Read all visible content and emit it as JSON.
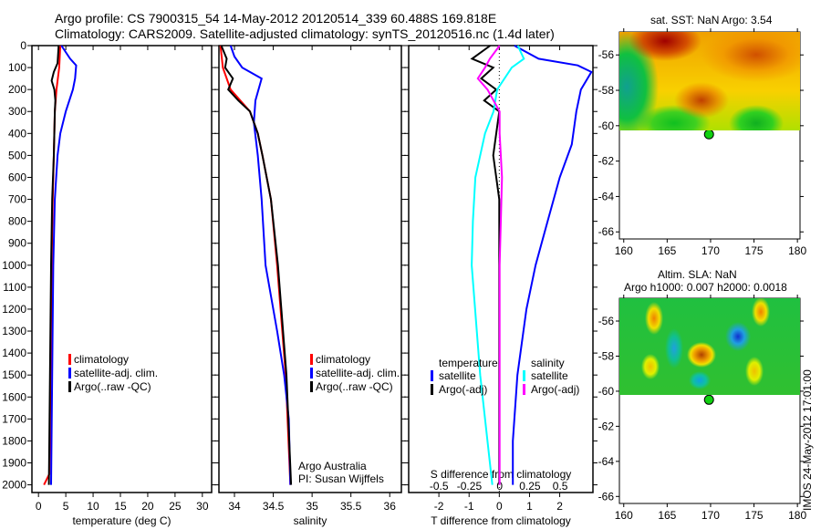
{
  "title_line1": "Argo profile: CS 7900315_54 14-May-2012 20120514_339 60.488S 169.818E",
  "title_line2": "Climatology: CARS2009. Satellite-adjusted climatology: synTS_20120516.nc (1.4d later)",
  "colors": {
    "climatology": "#ff0000",
    "satellite": "#0000ff",
    "argo": "#000000",
    "sat_salinity": "#00ffff",
    "argo_salinity": "#ff00ff"
  },
  "chart_data": [
    {
      "type": "line",
      "name": "temperature",
      "xlabel": "temperature (deg C)",
      "ylabel": "",
      "xlim": [
        -1.2,
        31.7
      ],
      "ylim": [
        2035,
        0
      ],
      "xticks": [
        0,
        5,
        10,
        15,
        20,
        25,
        30
      ],
      "yticks": [
        0,
        100,
        200,
        300,
        400,
        500,
        600,
        700,
        800,
        900,
        1000,
        1100,
        1200,
        1300,
        1400,
        1500,
        1600,
        1700,
        1800,
        1900,
        2000
      ],
      "legend": [
        "climatology",
        "satellite-adj. clim.",
        "Argo(..raw -QC)"
      ],
      "series": [
        {
          "name": "climatology",
          "color": "#ff0000",
          "depth": [
            0,
            100,
            200,
            300,
            500,
            700,
            1000,
            1500,
            1950,
            2000
          ],
          "values": [
            4.0,
            3.8,
            3.3,
            3.0,
            2.8,
            2.6,
            2.4,
            2.2,
            2.0,
            1.0
          ]
        },
        {
          "name": "satellite-adj. clim.",
          "color": "#0000ff",
          "depth": [
            0,
            60,
            90,
            150,
            200,
            300,
            400,
            500,
            700,
            1000,
            1500,
            2000
          ],
          "values": [
            4.2,
            5.8,
            6.9,
            6.7,
            6.3,
            5.0,
            4.0,
            3.5,
            3.0,
            2.7,
            2.5,
            2.3
          ]
        },
        {
          "name": "Argo(..raw -QC)",
          "color": "#000000",
          "depth": [
            0,
            80,
            120,
            160,
            200,
            250,
            300,
            500,
            700,
            1000,
            1500,
            2000
          ],
          "values": [
            3.7,
            3.5,
            2.8,
            2.4,
            2.9,
            3.1,
            3.0,
            2.8,
            2.5,
            2.3,
            2.1,
            1.9
          ]
        }
      ]
    },
    {
      "type": "line",
      "name": "salinity",
      "xlabel": "salinity",
      "xlim": [
        33.8,
        36.15
      ],
      "ylim": [
        2035,
        0
      ],
      "xticks": [
        34,
        34.5,
        35,
        35.5,
        36
      ],
      "legend": [
        "climatology",
        "satellite-adj. clim.",
        "Argo(..raw -QC)"
      ],
      "annotation": [
        "Argo Australia",
        "PI: Susan Wijffels"
      ],
      "series": [
        {
          "name": "climatology",
          "color": "#ff0000",
          "depth": [
            0,
            100,
            200,
            300,
            400,
            500,
            700,
            1000,
            1500,
            2000
          ],
          "values": [
            33.82,
            33.85,
            33.95,
            34.2,
            34.3,
            34.36,
            34.47,
            34.55,
            34.66,
            34.72
          ]
        },
        {
          "name": "satellite-adj. clim.",
          "color": "#0000ff",
          "depth": [
            0,
            50,
            100,
            150,
            250,
            350,
            500,
            700,
            1000,
            1300,
            1500,
            1700,
            2000
          ],
          "values": [
            33.95,
            34.0,
            34.1,
            34.35,
            34.27,
            34.25,
            34.3,
            34.35,
            34.4,
            34.55,
            34.64,
            34.7,
            34.72
          ]
        },
        {
          "name": "Argo(..raw -QC)",
          "color": "#000000",
          "depth": [
            0,
            60,
            100,
            150,
            200,
            250,
            300,
            400,
            500,
            700,
            1000,
            1500,
            2000
          ],
          "values": [
            33.83,
            33.9,
            33.88,
            33.98,
            33.92,
            34.05,
            34.2,
            34.3,
            34.36,
            34.47,
            34.56,
            34.67,
            34.73
          ]
        }
      ]
    },
    {
      "type": "line",
      "name": "difference",
      "xlabel": "T difference from climatology",
      "x2label": "S difference from climatology",
      "xlim": [
        -3.0,
        3.1
      ],
      "x2lim": [
        -0.75,
        0.77
      ],
      "ylim": [
        2035,
        0
      ],
      "xticks": [
        -2,
        -1,
        0,
        1,
        2
      ],
      "x2ticks": [
        -0.5,
        -0.25,
        0,
        0.25,
        0.5
      ],
      "legend": {
        "temperature": [
          "satellite",
          "Argo(-adj)"
        ],
        "salinity": [
          "satellite",
          "Argo(-adj)"
        ]
      },
      "series": [
        {
          "name": "temperature satellite",
          "axis": "T",
          "color": "#0000ff",
          "depth": [
            0,
            60,
            90,
            120,
            200,
            300,
            450,
            600,
            800,
            1000,
            1200,
            1500,
            1800,
            2000
          ],
          "values": [
            0.5,
            1.3,
            2.6,
            3.05,
            2.7,
            2.55,
            2.4,
            2.0,
            1.6,
            1.2,
            0.9,
            0.6,
            0.45,
            0.45
          ]
        },
        {
          "name": "temperature Argo(-adj)",
          "axis": "T",
          "color": "#000000",
          "depth": [
            0,
            60,
            100,
            150,
            200,
            250,
            300,
            400,
            500,
            700,
            1000,
            2000
          ],
          "values": [
            -0.3,
            -0.9,
            -0.2,
            -0.6,
            -0.1,
            -0.5,
            0.0,
            -0.1,
            -0.2,
            0.0,
            0.0,
            0.0
          ]
        },
        {
          "name": "salinity satellite",
          "axis": "S",
          "color": "#00ffff",
          "depth": [
            0,
            60,
            100,
            200,
            300,
            400,
            600,
            800,
            1000,
            1500,
            2000
          ],
          "values": [
            0.15,
            0.2,
            0.1,
            -0.02,
            -0.05,
            -0.12,
            -0.2,
            -0.22,
            -0.23,
            -0.16,
            -0.06
          ]
        },
        {
          "name": "salinity Argo(-adj)",
          "axis": "S",
          "color": "#ff00ff",
          "depth": [
            0,
            60,
            100,
            150,
            200,
            250,
            300,
            400,
            600,
            1000,
            2000
          ],
          "values": [
            0.0,
            -0.08,
            -0.12,
            -0.18,
            -0.1,
            -0.05,
            0.0,
            0.0,
            0.02,
            0.0,
            0.0
          ]
        }
      ]
    },
    {
      "type": "heatmap",
      "name": "sst-map",
      "title": "sat. SST: NaN Argo: 3.54",
      "xlim": [
        159.5,
        180.3
      ],
      "ylim": [
        -66.4,
        -54.7
      ],
      "xticks": [
        160,
        165,
        170,
        175,
        180
      ],
      "yticks": [
        -56,
        -58,
        -60,
        -62,
        -64,
        -66
      ],
      "point": {
        "lon": 169.818,
        "lat": -60.488
      }
    },
    {
      "type": "heatmap",
      "name": "sla-map",
      "title": "Altim. SLA: NaN",
      "subtitle": "Argo h1000: 0.007 h2000: 0.0018",
      "xlim": [
        159.5,
        180.3
      ],
      "ylim": [
        -66.4,
        -54.7
      ],
      "xticks": [
        160,
        165,
        170,
        175,
        180
      ],
      "yticks": [
        -56,
        -58,
        -60,
        -62,
        -64,
        -66
      ],
      "point": {
        "lon": 169.818,
        "lat": -60.488
      }
    }
  ],
  "stamp": "IMOS 24-May-2012 17:01:00"
}
